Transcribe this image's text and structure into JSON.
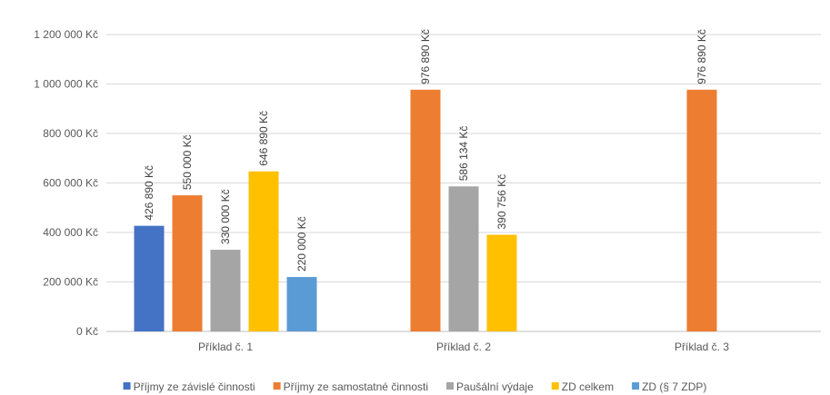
{
  "chart_data": {
    "type": "bar",
    "title": "",
    "xlabel": "",
    "ylabel": "",
    "categories": [
      "Příklad č. 1",
      "Příklad č. 2",
      "Příklad č. 3"
    ],
    "ylim": [
      0,
      1200000
    ],
    "yticks": [
      0,
      200000,
      400000,
      600000,
      800000,
      1000000,
      1200000
    ],
    "ytick_labels": [
      "0 Kč",
      "200 000 Kč",
      "400 000 Kč",
      "600 000 Kč",
      "800 000 Kč",
      "1 000 000 Kč",
      "1 200 000 Kč"
    ],
    "grid": true,
    "legend_position": "bottom",
    "series": [
      {
        "name": "Příjmy ze závislé činnosti",
        "color": "#4472C4",
        "values": [
          426890,
          null,
          null
        ],
        "labels": [
          "426 890 Kč",
          "",
          ""
        ]
      },
      {
        "name": "Příjmy ze samostatné činnosti",
        "color": "#ED7D31",
        "values": [
          550000,
          976890,
          976890
        ],
        "labels": [
          "550 000 Kč",
          "976 890 Kč",
          "976 890 Kč"
        ]
      },
      {
        "name": "Paušální výdaje",
        "color": "#A5A5A5",
        "values": [
          330000,
          586134,
          null
        ],
        "labels": [
          "330 000 Kč",
          "586 134 Kč",
          ""
        ]
      },
      {
        "name": "ZD celkem",
        "color": "#FFC000",
        "values": [
          646890,
          390756,
          null
        ],
        "labels": [
          "646 890 Kč",
          "390 756 Kč",
          ""
        ]
      },
      {
        "name": "ZD (§ 7 ZDP)",
        "color": "#5B9BD5",
        "values": [
          220000,
          null,
          null
        ],
        "labels": [
          "220 000 Kč",
          "",
          ""
        ]
      }
    ]
  }
}
